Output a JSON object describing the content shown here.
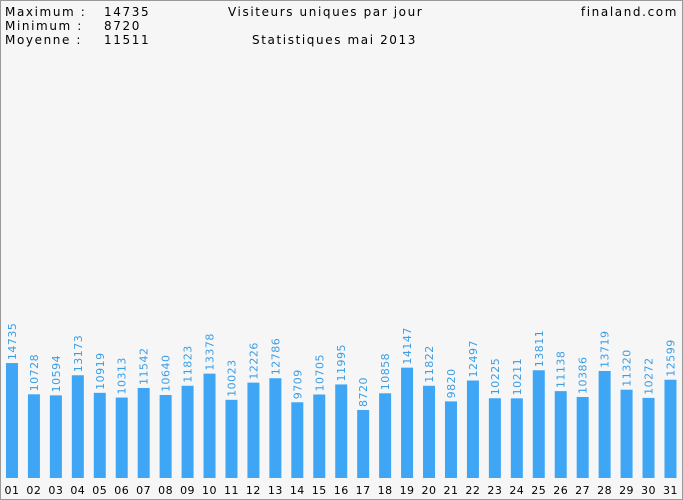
{
  "chart_data": {
    "type": "bar",
    "title": "Visiteurs uniques par jour",
    "subtitle": "Statistiques mai 2013",
    "site": "finaland.com",
    "summary": [
      {
        "label": "Maximum :",
        "value": 14735
      },
      {
        "label": "Minimum :",
        "value": 8720
      },
      {
        "label": "Moyenne :",
        "value": 11511
      }
    ],
    "categories": [
      "01",
      "02",
      "03",
      "04",
      "05",
      "06",
      "07",
      "08",
      "09",
      "10",
      "11",
      "12",
      "13",
      "14",
      "15",
      "16",
      "17",
      "18",
      "19",
      "20",
      "21",
      "22",
      "23",
      "24",
      "25",
      "26",
      "27",
      "28",
      "29",
      "30",
      "31"
    ],
    "values": [
      14735,
      10728,
      10594,
      13173,
      10919,
      10313,
      11542,
      10640,
      11823,
      13378,
      10023,
      12226,
      12786,
      9709,
      10705,
      11995,
      8720,
      10858,
      14147,
      11822,
      9820,
      12497,
      10225,
      10211,
      13811,
      11138,
      10386,
      13719,
      11320,
      10272,
      12599
    ],
    "color": "#3ea6f5",
    "ylim": [
      0,
      30000
    ]
  }
}
